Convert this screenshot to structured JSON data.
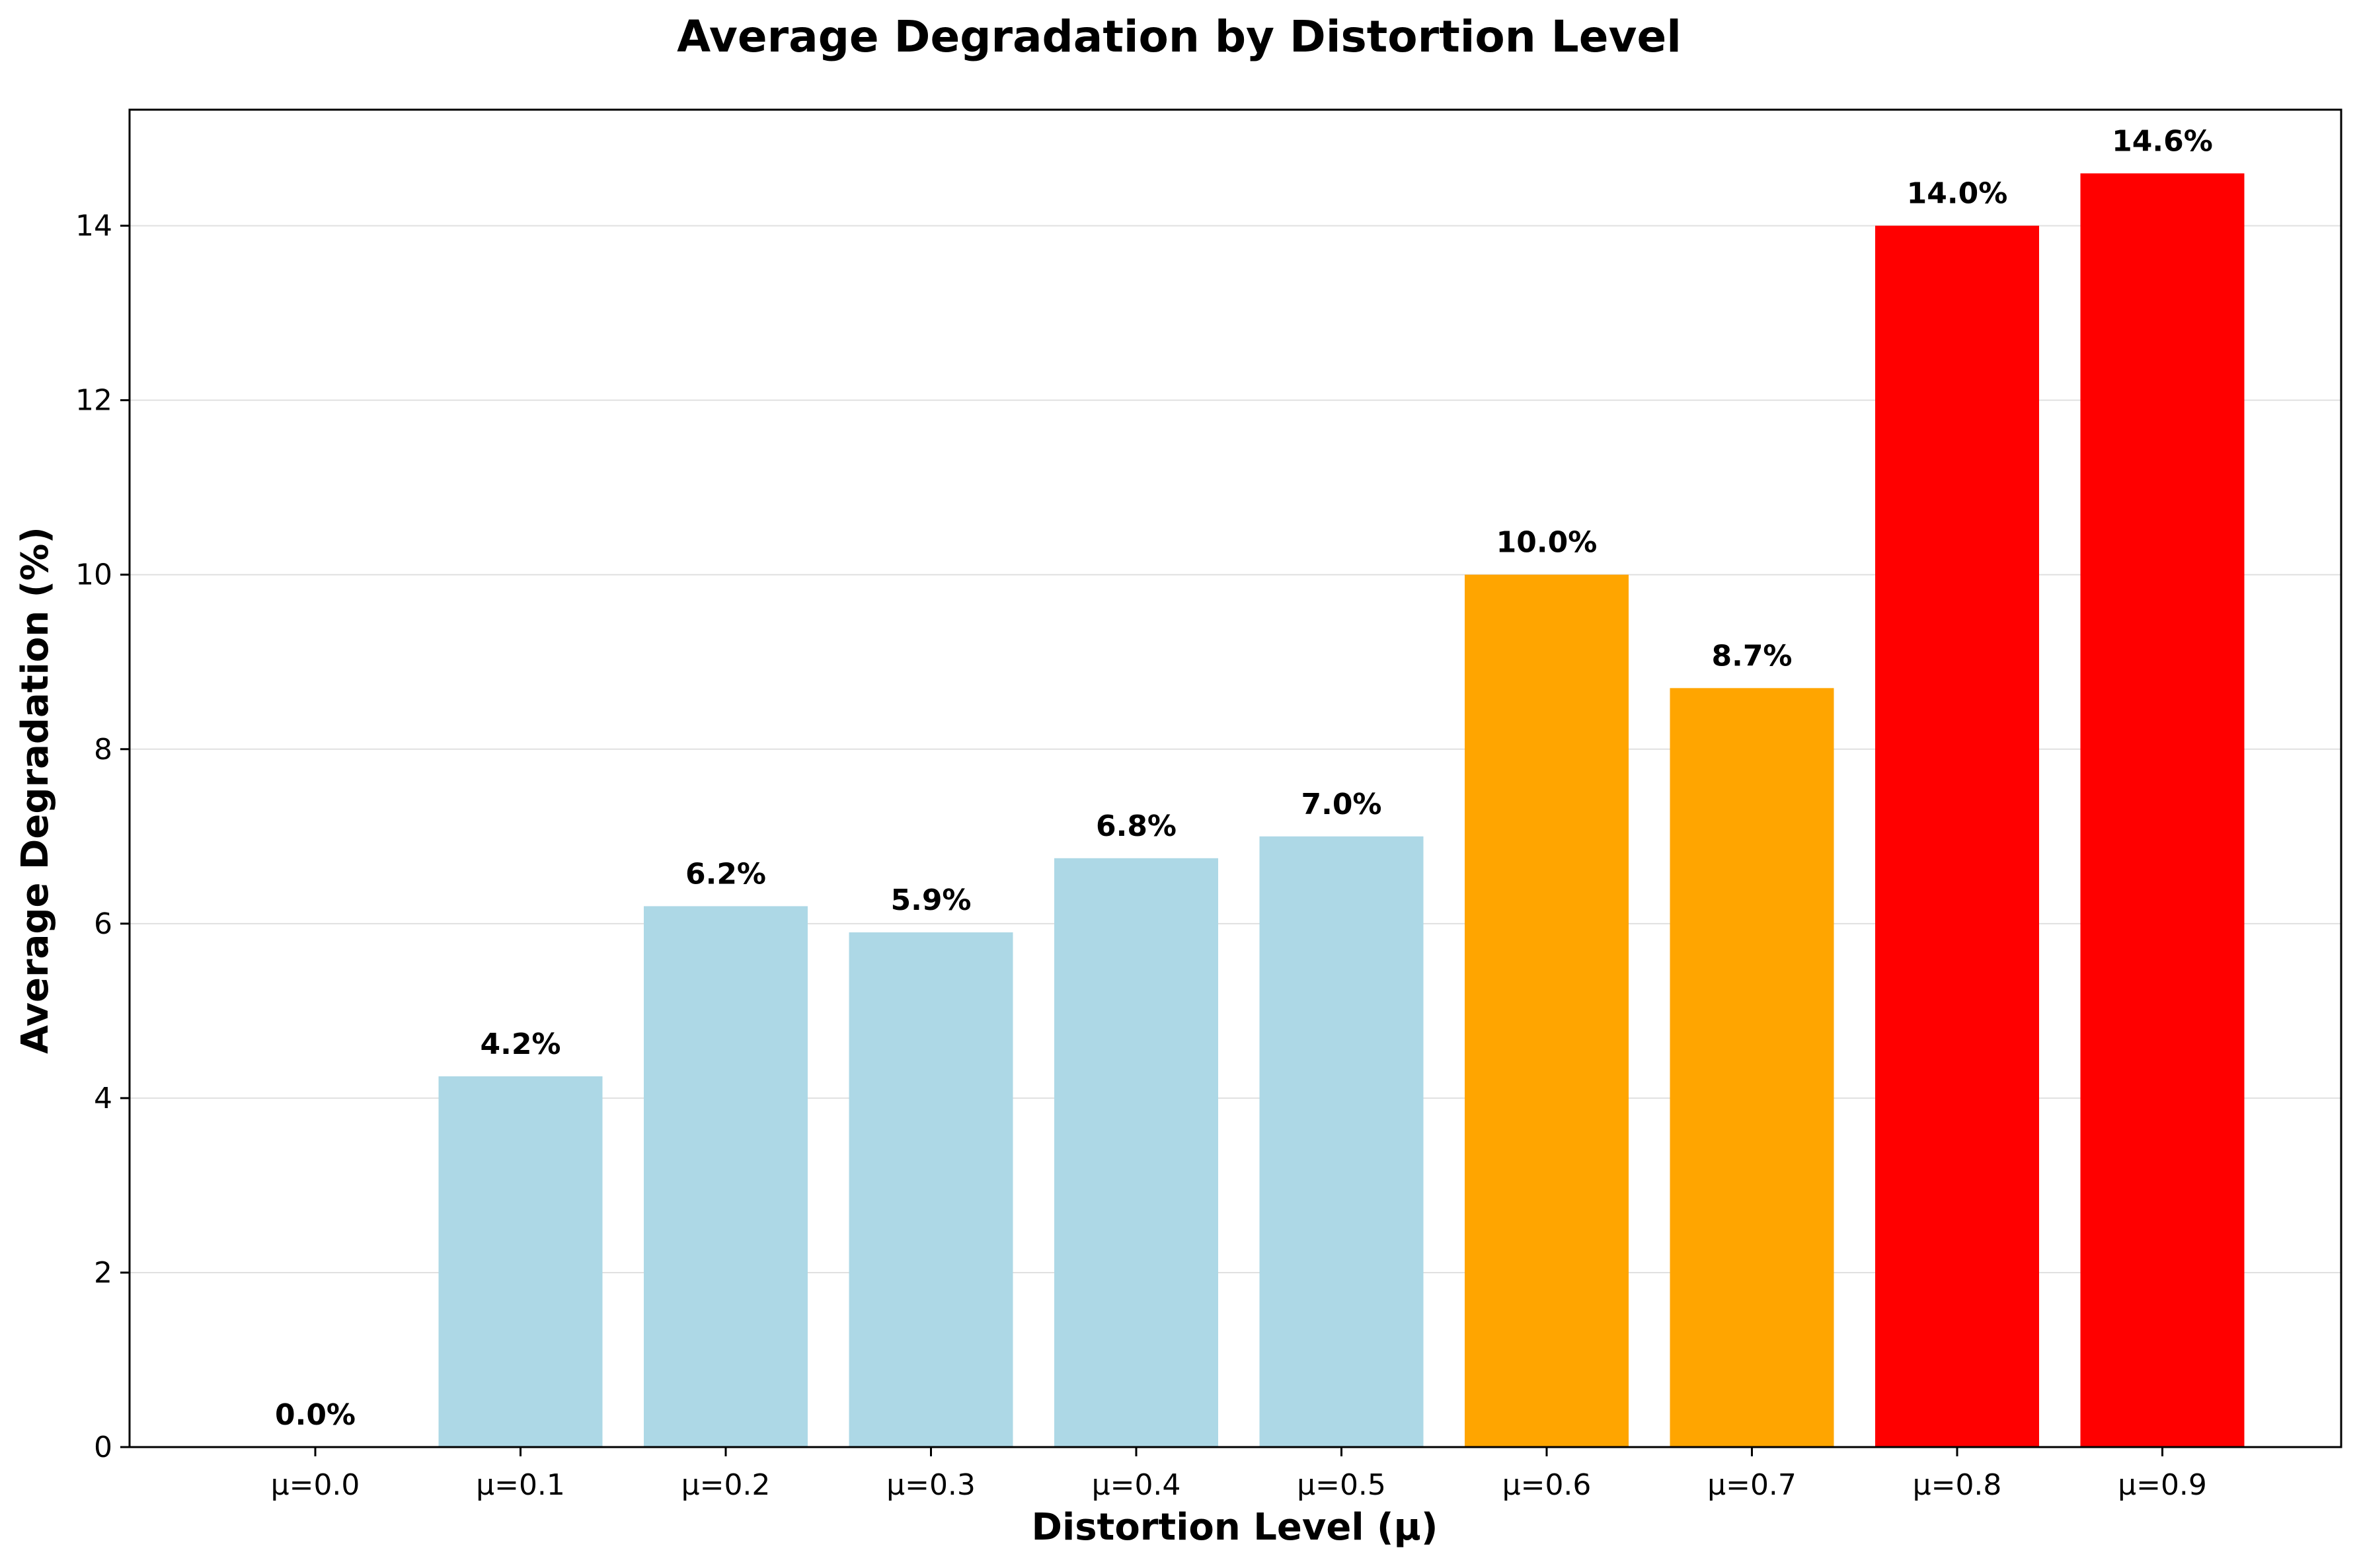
{
  "chart_data": {
    "type": "bar",
    "title": "Average Degradation by Distortion Level",
    "xlabel": "Distortion Level (μ)",
    "ylabel": "Average Degradation (%)",
    "categories": [
      "μ=0.0",
      "μ=0.1",
      "μ=0.2",
      "μ=0.3",
      "μ=0.4",
      "μ=0.5",
      "μ=0.6",
      "μ=0.7",
      "μ=0.8",
      "μ=0.9"
    ],
    "values": [
      0.0,
      4.25,
      6.2,
      5.9,
      6.75,
      7.0,
      10.0,
      8.7,
      14.0,
      14.6
    ],
    "data_labels": [
      "0.0%",
      "4.2%",
      "6.2%",
      "5.9%",
      "6.8%",
      "7.0%",
      "10.0%",
      "8.7%",
      "14.0%",
      "14.6%"
    ],
    "bar_colors": [
      "#add8e6",
      "#add8e6",
      "#add8e6",
      "#add8e6",
      "#add8e6",
      "#add8e6",
      "#ffa500",
      "#ffa500",
      "#ff0000",
      "#ff0000"
    ],
    "ylim": [
      0,
      15.33
    ],
    "yticks": [
      0,
      2,
      4,
      6,
      8,
      10,
      12,
      14
    ],
    "ytick_labels": [
      "0",
      "2",
      "4",
      "6",
      "8",
      "10",
      "12",
      "14"
    ],
    "grid": "y-axis, light gray",
    "legend": "none"
  }
}
